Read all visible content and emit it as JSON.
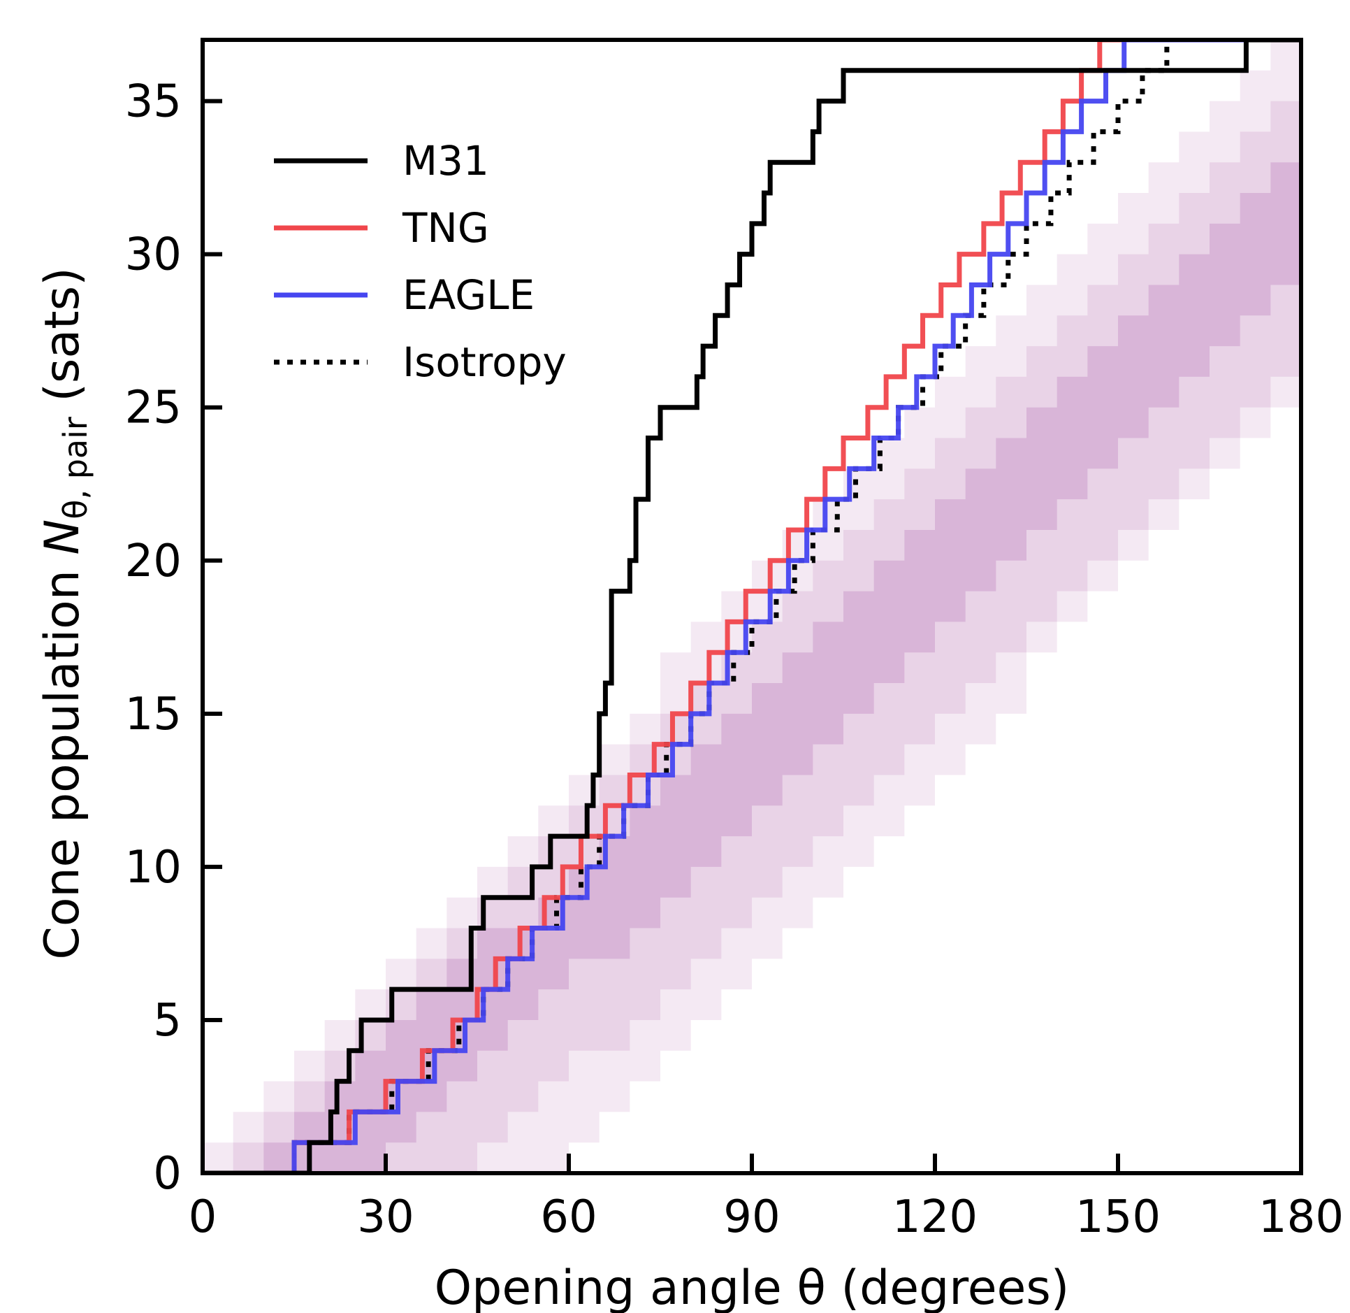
{
  "chart_data": {
    "type": "line",
    "xlabel": "Opening angle θ (degrees)",
    "ylabel_main": "Cone population ",
    "ylabel_symbol": "N",
    "ylabel_subscript": "θ, pair",
    "ylabel_unit": " (sats)",
    "xlim": [
      0,
      180
    ],
    "ylim": [
      0,
      37
    ],
    "xticks": [
      0,
      30,
      60,
      90,
      120,
      150,
      180
    ],
    "yticks": [
      0,
      5,
      10,
      15,
      20,
      25,
      30,
      35
    ],
    "grid": false,
    "legend_position": "top-left",
    "colors": {
      "M31": "#000000",
      "TNG": "#f0464b",
      "EAGLE": "#4646f0",
      "Isotropy": "#000000",
      "band_outer": "#f4e9f3",
      "band_middle": "#e9d3e7",
      "band_inner": "#d9b5d8"
    },
    "series": [
      {
        "name": "M31",
        "style": "solid",
        "x": [
          0,
          17.5,
          18,
          21,
          22,
          24,
          26,
          31,
          44,
          46,
          47,
          54,
          57,
          63,
          64,
          65,
          66,
          67,
          70,
          71,
          73,
          75,
          81,
          82,
          83,
          84,
          86,
          88,
          90,
          92,
          93,
          94,
          95,
          100,
          101,
          104,
          105,
          106,
          171,
          180
        ],
        "y": [
          0,
          1,
          1,
          2,
          3,
          4,
          5,
          6,
          8,
          9,
          9,
          10,
          11,
          12,
          13,
          15,
          16,
          19,
          20,
          22,
          24,
          25,
          26,
          27,
          27,
          28,
          29,
          30,
          31,
          32,
          33,
          33,
          33,
          34,
          35,
          35,
          36,
          36,
          37,
          37
        ]
      },
      {
        "name": "TNG",
        "style": "solid",
        "x": [
          0,
          15,
          24,
          30,
          36,
          41,
          45,
          48,
          52,
          56,
          59,
          62,
          66,
          70,
          74,
          77,
          80,
          83,
          86,
          89,
          93,
          96,
          99,
          102,
          105,
          109,
          112,
          115,
          118,
          121,
          124,
          128,
          131,
          134,
          138,
          141,
          144,
          147,
          150,
          154,
          157,
          160,
          163,
          180
        ],
        "y": [
          0,
          1,
          2,
          3,
          4,
          5,
          6,
          7,
          8,
          9,
          10,
          11,
          12,
          13,
          14,
          15,
          16,
          17,
          18,
          19,
          20,
          21,
          22,
          23,
          24,
          25,
          26,
          27,
          28,
          29,
          30,
          31,
          32,
          33,
          34,
          35,
          36,
          37,
          37,
          37,
          37,
          37,
          37,
          37
        ]
      },
      {
        "name": "EAGLE",
        "style": "solid",
        "x": [
          0,
          15,
          25,
          32,
          38,
          43,
          46,
          50,
          54,
          59,
          63,
          66,
          69,
          73,
          77,
          80,
          83,
          86,
          89,
          93,
          96,
          99,
          102,
          106,
          110,
          114,
          117,
          120,
          123,
          126,
          129,
          132,
          135,
          138,
          141,
          144,
          148,
          151,
          154,
          157,
          160,
          163,
          180
        ],
        "y": [
          0,
          1,
          2,
          3,
          4,
          5,
          6,
          7,
          8,
          9,
          10,
          11,
          12,
          13,
          14,
          15,
          16,
          17,
          18,
          19,
          20,
          21,
          22,
          23,
          24,
          25,
          26,
          27,
          28,
          29,
          30,
          31,
          32,
          33,
          34,
          35,
          36,
          37,
          37,
          37,
          37,
          37,
          37
        ]
      },
      {
        "name": "Isotropy",
        "style": "dotted",
        "x": [
          0,
          15,
          24,
          31,
          37,
          42,
          46,
          50,
          54,
          58,
          62,
          65,
          69,
          73,
          76,
          80,
          83,
          87,
          90,
          94,
          97,
          100,
          104,
          107,
          111,
          114,
          118,
          121,
          125,
          128,
          132,
          135,
          139,
          142,
          146,
          150,
          154,
          158,
          162,
          180
        ],
        "y": [
          0,
          1,
          2,
          3,
          4,
          5,
          6,
          7,
          8,
          9,
          10,
          11,
          12,
          13,
          14,
          15,
          16,
          17,
          18,
          19,
          20,
          21,
          22,
          23,
          24,
          25,
          26,
          27,
          28,
          29,
          30,
          31,
          32,
          33,
          34,
          35,
          36,
          37,
          37,
          37
        ]
      }
    ],
    "bands": {
      "description_levels": [
        "outer",
        "middle",
        "inner"
      ],
      "outer_lower": [
        0,
        0,
        0,
        0,
        0,
        0,
        0,
        0,
        0,
        0,
        0,
        0,
        1,
        2,
        3,
        4,
        5,
        6,
        7,
        8,
        9,
        10,
        11,
        12,
        13,
        14,
        15,
        17,
        18,
        19,
        20,
        21,
        22,
        23,
        24,
        25
      ],
      "outer_upper": [
        1,
        2,
        3,
        4,
        5,
        6,
        7,
        8,
        9,
        10,
        11,
        12,
        13,
        14,
        15,
        17,
        18,
        19,
        20,
        21,
        22,
        23,
        24,
        25,
        26,
        27,
        28,
        29,
        30,
        31,
        32,
        33,
        34,
        35,
        36,
        37
      ],
      "middle_lower": [
        0,
        0,
        0,
        0,
        0,
        0,
        0,
        0,
        0,
        1,
        2,
        3,
        4,
        4,
        5,
        6,
        7,
        8,
        9,
        10,
        11,
        12,
        13,
        14,
        15,
        16,
        17,
        18,
        19,
        20,
        21,
        22,
        23,
        24,
        25,
        26
      ],
      "middle_upper": [
        0,
        1,
        2,
        3,
        4,
        5,
        6,
        7,
        8,
        9,
        10,
        11,
        12,
        13,
        14,
        15,
        16,
        17,
        18,
        19,
        20,
        21,
        22,
        23,
        24,
        25,
        26,
        27,
        28,
        29,
        30,
        31,
        32,
        33,
        34,
        35
      ],
      "inner_lower": [
        0,
        0,
        0,
        0,
        0,
        0,
        1,
        2,
        3,
        4,
        5,
        6,
        7,
        7,
        8,
        9,
        10,
        11,
        12,
        13,
        14,
        15,
        16,
        17,
        18,
        19,
        20,
        21,
        22,
        23,
        24,
        25,
        26,
        27,
        28,
        29
      ],
      "inner_upper": [
        0,
        0,
        1,
        2,
        3,
        4,
        5,
        6,
        7,
        8,
        8,
        9,
        10,
        11,
        12,
        13,
        14,
        15,
        16,
        17,
        18,
        19,
        20,
        21,
        22,
        23,
        24,
        25,
        26,
        27,
        28,
        29,
        30,
        31,
        32,
        33
      ]
    }
  }
}
